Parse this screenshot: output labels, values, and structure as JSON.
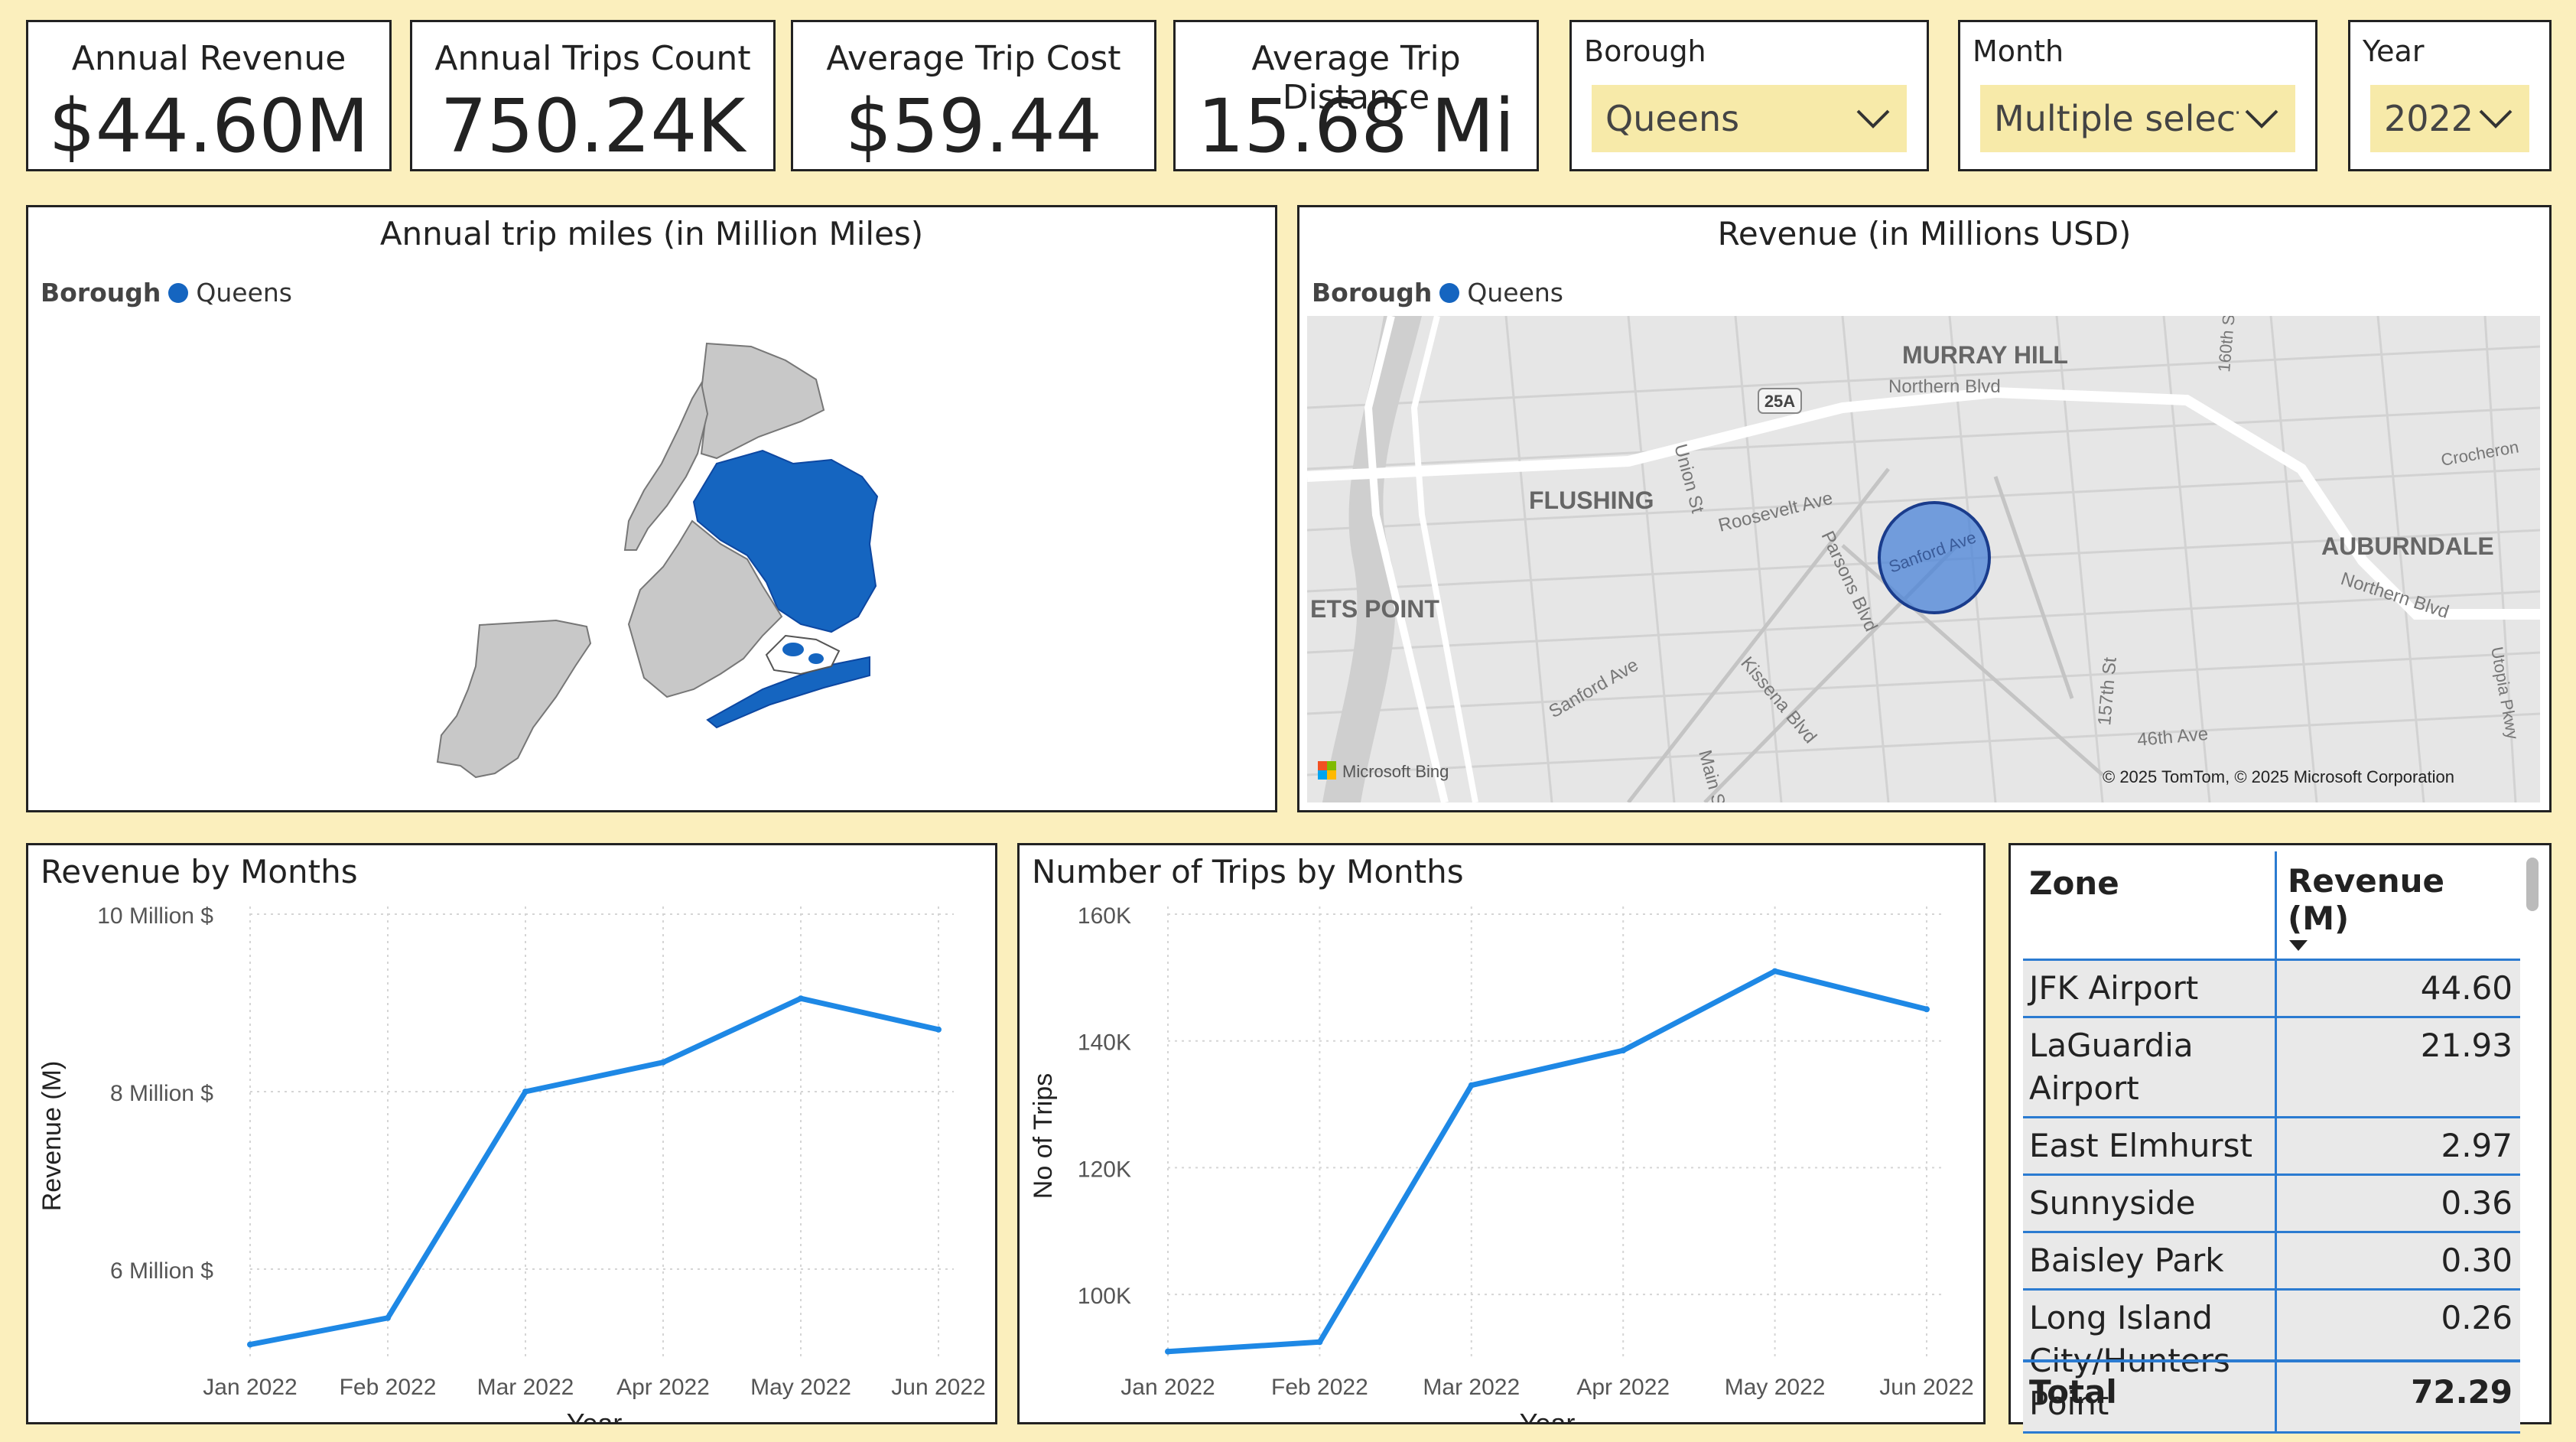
{
  "kpis": [
    {
      "label": "Annual Revenue",
      "value": "$44.60M"
    },
    {
      "label": "Annual Trips Count",
      "value": "750.24K"
    },
    {
      "label": "Average Trip Cost",
      "value": "$59.44"
    },
    {
      "label": "Average Trip Distance",
      "value": "15.68 Mi"
    }
  ],
  "slicers": {
    "borough": {
      "label": "Borough",
      "value": "Queens"
    },
    "month": {
      "label": "Month",
      "value": "Multiple select..."
    },
    "year": {
      "label": "Year",
      "value": "2022"
    }
  },
  "shape_map": {
    "title": "Annual trip miles (in Million Miles)",
    "legend_label": "Borough",
    "legend_item": "Queens",
    "highlight_color": "#1565c0",
    "base_color": "#c8c8c8"
  },
  "revenue_map": {
    "title": "Revenue (in Millions USD)",
    "legend_label": "Borough",
    "legend_item": "Queens",
    "labels": {
      "murray_hill": "MURRAY HILL",
      "northern_blvd": "Northern Blvd",
      "flushing": "FLUSHING",
      "auburndale": "AUBURNDALE",
      "northern_blvd_2": "Northern Blvd",
      "ets_point": "ETS POINT",
      "roosevelt": "Roosevelt Ave",
      "union_st": "Union St",
      "parsons": "Parsons Blvd",
      "sanford": "Sanford Ave",
      "sanford_2": "Sanford Ave",
      "kissena": "Kissena Blvd",
      "main_st": "Main St",
      "st157": "157th St",
      "ave46": "46th Ave",
      "st160": "160th St",
      "crocheron": "Crocheron",
      "utopia": "Utopia Pkwy",
      "route": "25A",
      "bing": "Microsoft Bing",
      "copyright": "© 2025 TomTom, © 2025 Microsoft Corporation"
    }
  },
  "chart_data": [
    {
      "type": "line",
      "title": "Revenue by Months",
      "xlabel": "Year",
      "ylabel": "Revenue (M)",
      "categories": [
        "Jan 2022",
        "Feb 2022",
        "Mar 2022",
        "Apr 2022",
        "May 2022",
        "Jun 2022"
      ],
      "values": [
        5.15,
        5.45,
        8.0,
        8.33,
        9.05,
        8.7
      ],
      "yticks": [
        6,
        8,
        10
      ],
      "ytick_labels": [
        "6 Million $",
        "8 Million $",
        "10 Million $"
      ],
      "ylim": [
        5.0,
        10.0
      ],
      "color": "#1e88e5"
    },
    {
      "type": "line",
      "title": "Number of Trips by Months",
      "xlabel": "Year",
      "ylabel": "No of Trips",
      "categories": [
        "Jan 2022",
        "Feb 2022",
        "Mar 2022",
        "Apr 2022",
        "May 2022",
        "Jun 2022"
      ],
      "values": [
        91000,
        92500,
        133000,
        138500,
        151000,
        145000
      ],
      "yticks": [
        100000,
        120000,
        140000,
        160000
      ],
      "ytick_labels": [
        "100K",
        "120K",
        "140K",
        "160K"
      ],
      "ylim": [
        90000,
        160000
      ],
      "color": "#1e88e5"
    }
  ],
  "table": {
    "headers": [
      "Zone",
      "Revenue (M)"
    ],
    "rows": [
      {
        "zone": "JFK Airport",
        "revenue": "44.60"
      },
      {
        "zone": "LaGuardia Airport",
        "revenue": "21.93"
      },
      {
        "zone": "East Elmhurst",
        "revenue": "2.97"
      },
      {
        "zone": "Sunnyside",
        "revenue": "0.36"
      },
      {
        "zone": "Baisley Park",
        "revenue": "0.30"
      },
      {
        "zone": "Long Island City/Hunters Point",
        "revenue": "0.26"
      }
    ],
    "total_label": "Total",
    "total_value": "72.29"
  }
}
